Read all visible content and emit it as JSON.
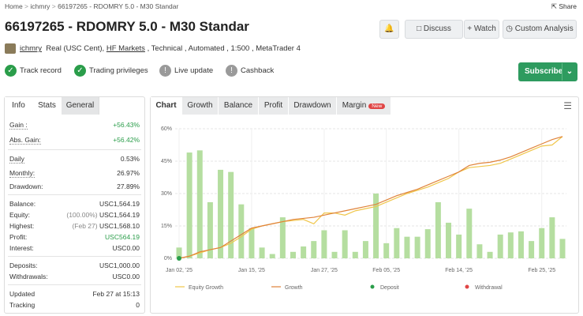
{
  "breadcrumb": [
    "Home",
    "ichmry",
    "66197265 - RDOMRY 5.0 - M30 Standar"
  ],
  "share": "Share",
  "title": "66197265 - RDOMRY 5.0 - M30 Standar",
  "actions": [
    "Discuss",
    "+ Watch",
    "Custom Analysis"
  ],
  "owner": "ichmry",
  "account_info": [
    "Real (USC Cent),",
    "HF Markets",
    ", Technical , Automated , 1:500 , MetaTrader 4"
  ],
  "badges": [
    {
      "label": "Track record",
      "verified": true
    },
    {
      "label": "Trading privileges",
      "verified": true
    },
    {
      "label": "Live update",
      "verified": false
    },
    {
      "label": "Cashback",
      "verified": false
    }
  ],
  "subscribe": "Subscribe",
  "stats_tabs": [
    "Info",
    "Stats",
    "General"
  ],
  "stats": [
    [
      {
        "label": "Gain :",
        "value": "+56.43%",
        "positive": true
      },
      {
        "label": "Abs. Gain:",
        "value": "+56.42%",
        "positive": true
      }
    ],
    [
      {
        "label": "Daily",
        "value": "0.53%"
      },
      {
        "label": "Monthly:",
        "value": "26.97%"
      },
      {
        "label": "Drawdown:",
        "value": "27.89%"
      }
    ],
    [
      {
        "label": "Balance:",
        "value": "USC1,564.19"
      },
      {
        "label": "Equity:",
        "note": "(100.00%)",
        "value": "USC1,564.19"
      },
      {
        "label": "Highest:",
        "note": "(Feb 27)",
        "value": "USC1,568.10"
      },
      {
        "label": "Profit:",
        "value": "USC564.19",
        "positive": true
      },
      {
        "label": "Interest:",
        "value": "USC0.00"
      }
    ],
    [
      {
        "label": "Deposits:",
        "value": "USC1,000.00"
      },
      {
        "label": "Withdrawals:",
        "value": "USC0.00"
      }
    ],
    [
      {
        "label": "Updated",
        "value": "Feb 27 at 15:13"
      },
      {
        "label": "Tracking",
        "value": "0"
      }
    ]
  ],
  "chart_tabs": [
    "Chart",
    "Growth",
    "Balance",
    "Profit",
    "Drawdown",
    "Margin"
  ],
  "new_badge": "New",
  "chart_data": {
    "type": "bar",
    "categories": [
      "Jan 02, '25",
      null,
      null,
      null,
      null,
      null,
      null,
      "Jan 15, '25",
      null,
      null,
      null,
      null,
      null,
      null,
      "Jan 27, '25",
      null,
      null,
      null,
      null,
      null,
      "Feb 05, '25",
      null,
      null,
      null,
      null,
      null,
      null,
      "Feb 14, '25",
      null,
      null,
      null,
      null,
      null,
      null,
      null,
      "Feb 25, '25",
      null,
      null
    ],
    "values": [
      5,
      49,
      50,
      26,
      41,
      40,
      25,
      14,
      5,
      2,
      19,
      3,
      5.5,
      8,
      13,
      3,
      13,
      3,
      8,
      30,
      7,
      14,
      10,
      10,
      13.5,
      26,
      16.5,
      11,
      23,
      6.5,
      3,
      11,
      12,
      12.5,
      8,
      14,
      19,
      9
    ],
    "color": "#b5dea0",
    "lines": [
      {
        "name": "Equity Growth",
        "color": "#f0c64a",
        "values": [
          0,
          1,
          2.5,
          4,
          5,
          7,
          10,
          13.5,
          15,
          16,
          17,
          17.5,
          18,
          16,
          21,
          21,
          20,
          22,
          23,
          24,
          26,
          28,
          30,
          31.5,
          33,
          35,
          37,
          40,
          42,
          42.5,
          43,
          44,
          46,
          48,
          50,
          52,
          52.5,
          56.4
        ]
      },
      {
        "name": "Growth",
        "color": "#e0833a",
        "values": [
          0,
          1,
          3,
          4,
          5,
          8,
          11,
          14,
          15,
          16,
          17,
          18,
          18.5,
          19,
          20,
          21,
          22,
          23,
          24,
          25,
          27,
          29,
          30.5,
          32,
          34,
          36,
          38,
          40,
          43,
          44,
          44.5,
          45.5,
          47,
          49,
          51,
          53,
          55,
          56.4
        ]
      }
    ],
    "markers": [
      {
        "name": "Deposit",
        "color": "#2a9d4a"
      },
      {
        "name": "Withdrawal",
        "color": "#e04545"
      }
    ],
    "ylim": [
      0,
      60
    ],
    "yticks": [
      {
        "value": 0,
        "label": "0%"
      },
      {
        "value": 15,
        "label": "15%"
      },
      {
        "value": 30,
        "label": "30%"
      },
      {
        "value": 45,
        "label": "45%"
      },
      {
        "value": 60,
        "label": "60%"
      }
    ],
    "grid": true
  }
}
